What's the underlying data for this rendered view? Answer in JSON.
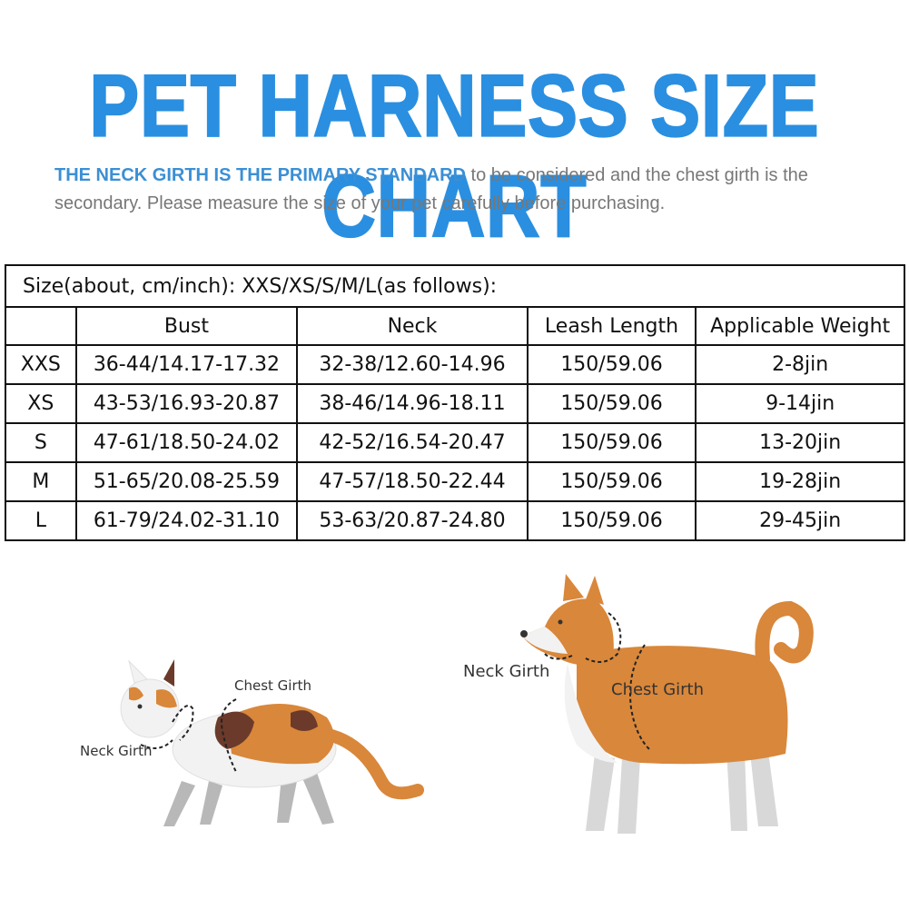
{
  "header": {
    "title": "PET HARNESS SIZE CHART",
    "subtitle_highlight": "THE NECK GIRTH IS THE PRIMARY STANDARD",
    "subtitle_rest": " to be considered and the chest girth is the secondary. Please measure the size of your pet carefully before purchasing."
  },
  "table": {
    "caption": "Size(about, cm/inch): XXS/XS/S/M/L(as follows):",
    "columns": [
      "",
      "Bust",
      "Neck",
      "Leash Length",
      "Applicable Weight"
    ],
    "rows": [
      [
        "XXS",
        "36-44/14.17-17.32",
        "32-38/12.60-14.96",
        "150/59.06",
        "2-8jin"
      ],
      [
        "XS",
        "43-53/16.93-20.87",
        "38-46/14.96-18.11",
        "150/59.06",
        "9-14jin"
      ],
      [
        "S",
        "47-61/18.50-24.02",
        "42-52/16.54-20.47",
        "150/59.06",
        "13-20jin"
      ],
      [
        "M",
        "51-65/20.08-25.59",
        "47-57/18.50-22.44",
        "150/59.06",
        "19-28jin"
      ],
      [
        "L",
        "61-79/24.02-31.10",
        "53-63/20.87-24.80",
        "150/59.06",
        "29-45jin"
      ]
    ]
  },
  "illustrations": {
    "cat": {
      "chest_label": "Chest Girth",
      "neck_label": "Neck  Girth"
    },
    "dog": {
      "chest_label": "Chest Girth",
      "neck_label": "Neck  Girth"
    }
  },
  "colors": {
    "title_blue": "#2a8fe0",
    "highlight_blue": "#3b8fd4",
    "body_gray": "#777777",
    "fur_orange": "#d9873a",
    "fur_brown": "#6b3a2a",
    "fur_white": "#f2f2f2",
    "leg_gray": "#b8b8b8"
  }
}
